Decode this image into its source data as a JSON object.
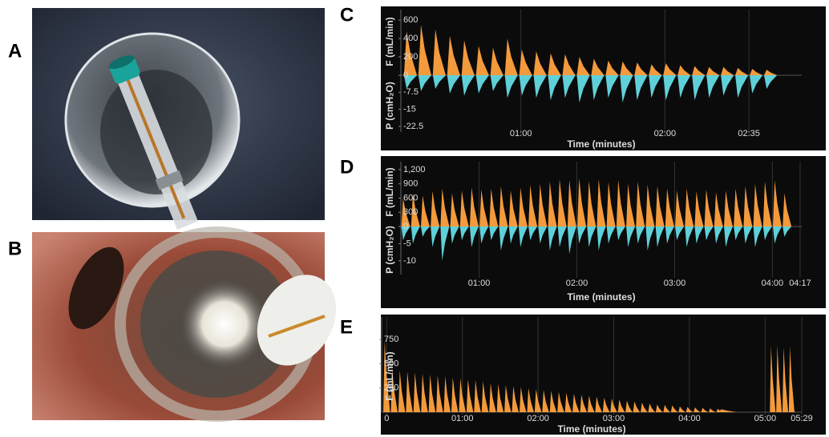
{
  "figure": {
    "panel_labels": [
      "A",
      "B",
      "C",
      "D",
      "E"
    ]
  },
  "chart_data": [
    {
      "type": "waveform",
      "x_label": "Time (minutes)",
      "y_label": "F (mL/min)",
      "y2_label": "P (cmH₂O)",
      "xlim": [
        10,
        177
      ],
      "xticks": [
        {
          "value": 60,
          "label": "01:00"
        },
        {
          "value": 120,
          "label": "02:00"
        },
        {
          "value": 155,
          "label": "02:35"
        }
      ],
      "ylim": [
        0,
        680
      ],
      "yticks": [
        0,
        200,
        400,
        600
      ],
      "y2lim": [
        -25,
        0
      ],
      "y2ticks": [
        -7.5,
        -15,
        -22.5
      ],
      "x": [
        14,
        20,
        26,
        32,
        38,
        44,
        50,
        56,
        62,
        68,
        74,
        80,
        86,
        92,
        98,
        104,
        110,
        116,
        122,
        128,
        134,
        140,
        146,
        152,
        158,
        164
      ],
      "series": [
        {
          "color": "#f39a3c",
          "values": [
            480,
            550,
            500,
            430,
            380,
            320,
            300,
            400,
            280,
            260,
            240,
            230,
            200,
            180,
            160,
            150,
            140,
            120,
            130,
            110,
            100,
            90,
            90,
            80,
            70,
            60
          ]
        },
        {
          "color": "#5fd0d8",
          "axis": "y2",
          "values": [
            -6,
            -7,
            -6,
            -8,
            -9,
            -8,
            -7,
            -10,
            -9,
            -10,
            -11,
            -10,
            -12,
            -11,
            -10,
            -12,
            -11,
            -10,
            -11,
            -10,
            -11,
            -10,
            -9,
            -10,
            -8,
            -6
          ]
        }
      ]
    },
    {
      "type": "waveform",
      "x_label": "Time (minutes)",
      "y_label": "F (mL/min)",
      "y2_label": "P (cmH₂O)",
      "xlim": [
        12,
        258
      ],
      "xticks": [
        {
          "value": 60,
          "label": "01:00"
        },
        {
          "value": 120,
          "label": "02:00"
        },
        {
          "value": 180,
          "label": "03:00"
        },
        {
          "value": 240,
          "label": "04:00"
        },
        {
          "value": 257,
          "label": "04:17"
        }
      ],
      "ylim": [
        0,
        1300
      ],
      "yticks": [
        0,
        300,
        600,
        900,
        {
          "value": 1200,
          "label": "1,200"
        }
      ],
      "y2lim": [
        -14,
        0
      ],
      "y2ticks": [
        -5,
        -10
      ],
      "x": [
        15,
        21,
        27,
        33,
        39,
        45,
        51,
        57,
        63,
        69,
        75,
        81,
        87,
        93,
        99,
        105,
        111,
        117,
        123,
        129,
        135,
        141,
        147,
        153,
        159,
        165,
        171,
        177,
        183,
        189,
        195,
        201,
        207,
        213,
        219,
        225,
        231,
        237,
        243,
        249
      ],
      "series": [
        {
          "color": "#f39a3c",
          "values": [
            600,
            700,
            650,
            750,
            800,
            700,
            760,
            820,
            780,
            800,
            850,
            760,
            820,
            880,
            900,
            950,
            1000,
            980,
            1020,
            960,
            1000,
            940,
            980,
            900,
            950,
            880,
            850,
            800,
            760,
            800,
            740,
            780,
            720,
            760,
            800,
            850,
            900,
            950,
            980,
            700
          ]
        },
        {
          "color": "#5fd0d8",
          "axis": "y2",
          "values": [
            -4,
            -5,
            -3,
            -6,
            -10,
            -5,
            -4,
            -6,
            -5,
            -4,
            -7,
            -5,
            -6,
            -4,
            -5,
            -7,
            -6,
            -8,
            -5,
            -6,
            -7,
            -5,
            -4,
            -6,
            -5,
            -7,
            -6,
            -5,
            -4,
            -6,
            -5,
            -4,
            -5,
            -6,
            -4,
            -5,
            -6,
            -4,
            -5,
            -3
          ]
        }
      ]
    },
    {
      "type": "waveform",
      "x_label": "Time (minutes)",
      "y_label": "F (mL/min)",
      "xlim": [
        -4,
        329
      ],
      "xticks": [
        0,
        {
          "value": 60,
          "label": "01:00"
        },
        {
          "value": 120,
          "label": "02:00"
        },
        {
          "value": 180,
          "label": "03:00"
        },
        {
          "value": 240,
          "label": "04:00"
        },
        {
          "value": 300,
          "label": "05:00"
        },
        {
          "value": 329,
          "label": "05:29"
        }
      ],
      "ylim": [
        0,
        950
      ],
      "yticks": [
        250,
        500,
        750
      ],
      "x": [
        0,
        6,
        12,
        18,
        24,
        30,
        36,
        42,
        48,
        54,
        60,
        66,
        72,
        78,
        84,
        90,
        96,
        102,
        108,
        114,
        120,
        126,
        132,
        138,
        144,
        150,
        156,
        162,
        168,
        174,
        180,
        186,
        192,
        198,
        204,
        210,
        216,
        222,
        228,
        234,
        240,
        246,
        252,
        258,
        264,
        270,
        306,
        311,
        316,
        321
      ],
      "series": [
        {
          "color": "#f39a3c",
          "values": [
            740,
            440,
            430,
            420,
            410,
            400,
            390,
            380,
            370,
            360,
            350,
            340,
            330,
            320,
            300,
            290,
            280,
            270,
            260,
            250,
            240,
            230,
            220,
            210,
            200,
            190,
            180,
            170,
            160,
            150,
            140,
            130,
            120,
            110,
            100,
            90,
            80,
            75,
            70,
            60,
            55,
            50,
            45,
            40,
            35,
            30,
            680,
            690,
            670,
            680
          ]
        }
      ]
    }
  ]
}
